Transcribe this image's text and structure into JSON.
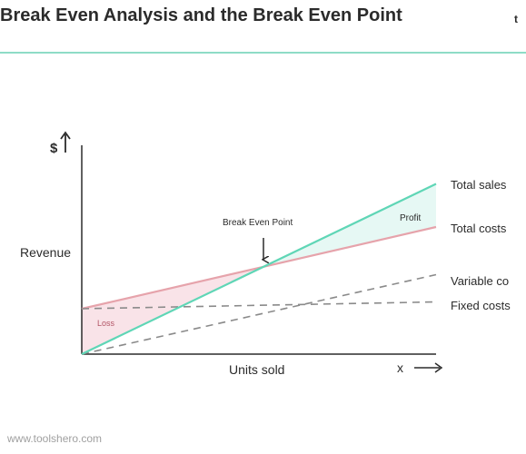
{
  "page": {
    "title": "Break Even Analysis and the Break Even Point",
    "title_cut": "t",
    "footer": "www.toolshero.com"
  },
  "chart_data": {
    "type": "line",
    "title": "",
    "xlabel": "Units sold",
    "ylabel": "Revenue",
    "y_axis_symbol": "$",
    "x_axis_symbol": "x",
    "xlim": [
      0,
      100
    ],
    "ylim": [
      0,
      100
    ],
    "grid": false,
    "series": [
      {
        "name": "Total sales",
        "style": "solid",
        "color": "#5fd6b6",
        "points": [
          [
            0,
            0
          ],
          [
            100,
            75
          ]
        ]
      },
      {
        "name": "Total costs",
        "style": "solid",
        "color": "#e6a3ab",
        "points": [
          [
            0,
            20
          ],
          [
            100,
            56
          ]
        ]
      },
      {
        "name": "Variable co",
        "style": "dashed",
        "color": "#8a8a8a",
        "points": [
          [
            0,
            0
          ],
          [
            100,
            35
          ]
        ]
      },
      {
        "name": "Fixed costs",
        "style": "dashed",
        "color": "#8a8a8a",
        "points": [
          [
            0,
            20
          ],
          [
            100,
            23
          ]
        ]
      }
    ],
    "annotations": {
      "break_even": "Break Even Point",
      "profit": "Profit",
      "loss": "Loss"
    },
    "region_colors": {
      "profit": "#e6f8f4",
      "loss": "#f9e3e8"
    }
  }
}
